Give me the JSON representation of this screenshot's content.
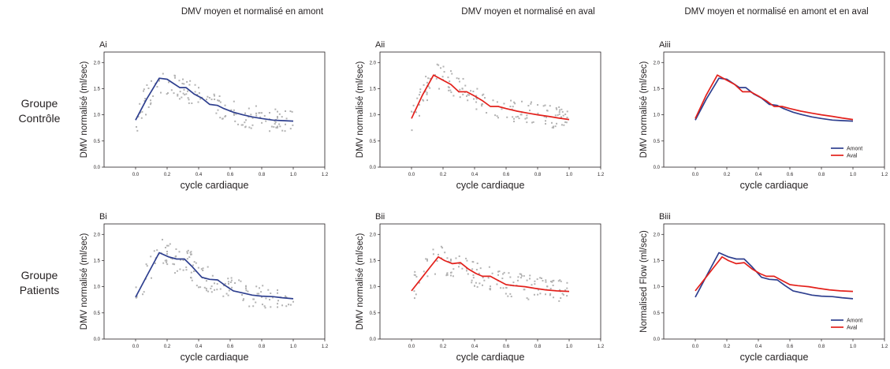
{
  "column_titles": [
    "DMV moyen et normalisé en amont",
    "DMV moyen et normalisé en aval",
    "DMV moyen et normalisé en amont et en aval"
  ],
  "row_labels": [
    [
      "Groupe",
      "Contrôle"
    ],
    [
      "Groupe",
      "Patients"
    ]
  ],
  "colors": {
    "amont": "#2e3f8f",
    "aval": "#e3201b",
    "scatter": "#b3b3b3"
  },
  "chart_data": [
    {
      "id": "Ai",
      "type": "line",
      "panel_label": "Ai",
      "xlabel": "cycle cardiaque",
      "ylabel": "DMV normalisé  (ml/sec)",
      "xlim": [
        -0.2,
        1.2
      ],
      "ylim": [
        0,
        2.2
      ],
      "xticks": [
        "0.0",
        "0.2",
        "0.4",
        "0.6",
        "0.8",
        "1.0",
        "1.2"
      ],
      "yticks": [
        "0.0",
        "0.5",
        "1.0",
        "1.5",
        "2.0"
      ],
      "series": [
        {
          "color_key": "amont",
          "x": [
            0.0,
            0.07,
            0.15,
            0.2,
            0.23,
            0.28,
            0.32,
            0.37,
            0.42,
            0.47,
            0.52,
            0.56,
            0.62,
            0.68,
            0.74,
            0.8,
            0.87,
            0.92,
            1.0
          ],
          "y": [
            0.9,
            1.3,
            1.7,
            1.68,
            1.62,
            1.52,
            1.52,
            1.4,
            1.32,
            1.2,
            1.18,
            1.12,
            1.05,
            1.0,
            0.96,
            0.93,
            0.9,
            0.89,
            0.88
          ]
        }
      ],
      "scatter": true,
      "legend": null
    },
    {
      "id": "Aii",
      "type": "line",
      "panel_label": "Aii",
      "xlabel": "cycle cardiaque",
      "ylabel": "DMV normalisé (ml/sec)",
      "xlim": [
        -0.2,
        1.2
      ],
      "ylim": [
        0,
        2.2
      ],
      "xticks": [
        "0.0",
        "0.2",
        "0.4",
        "0.6",
        "0.8",
        "1.0",
        "1.2"
      ],
      "yticks": [
        "0.0",
        "0.5",
        "1.0",
        "1.5",
        "2.0"
      ],
      "series": [
        {
          "color_key": "aval",
          "x": [
            0.0,
            0.07,
            0.14,
            0.2,
            0.25,
            0.3,
            0.35,
            0.4,
            0.45,
            0.5,
            0.55,
            0.6,
            0.67,
            0.74,
            0.8,
            0.87,
            0.93,
            1.0
          ],
          "y": [
            0.93,
            1.38,
            1.76,
            1.66,
            1.58,
            1.44,
            1.44,
            1.36,
            1.27,
            1.16,
            1.16,
            1.12,
            1.07,
            1.03,
            1.0,
            0.97,
            0.94,
            0.91
          ]
        }
      ],
      "scatter": true,
      "legend": null
    },
    {
      "id": "Aiii",
      "type": "line",
      "panel_label": "Aiii",
      "xlabel": "cycle cardiaque",
      "ylabel": "DMV normalisé (ml/sec)",
      "xlim": [
        -0.2,
        1.2
      ],
      "ylim": [
        0,
        2.2
      ],
      "xticks": [
        "0.0",
        "0.2",
        "0.4",
        "0.6",
        "0.8",
        "1.0",
        "1.2"
      ],
      "yticks": [
        "0.0",
        "0.5",
        "1.0",
        "1.5",
        "2.0"
      ],
      "series": [
        {
          "name": "Amont",
          "color_key": "amont",
          "x": [
            0.0,
            0.07,
            0.15,
            0.2,
            0.23,
            0.28,
            0.32,
            0.37,
            0.42,
            0.47,
            0.52,
            0.56,
            0.62,
            0.68,
            0.74,
            0.8,
            0.87,
            0.92,
            1.0
          ],
          "y": [
            0.9,
            1.3,
            1.7,
            1.68,
            1.62,
            1.52,
            1.52,
            1.4,
            1.32,
            1.2,
            1.18,
            1.12,
            1.05,
            1.0,
            0.96,
            0.93,
            0.9,
            0.89,
            0.88
          ]
        },
        {
          "name": "Aval",
          "color_key": "aval",
          "x": [
            0.0,
            0.07,
            0.14,
            0.2,
            0.25,
            0.3,
            0.35,
            0.4,
            0.45,
            0.5,
            0.55,
            0.6,
            0.67,
            0.74,
            0.8,
            0.87,
            0.93,
            1.0
          ],
          "y": [
            0.93,
            1.38,
            1.76,
            1.66,
            1.58,
            1.44,
            1.44,
            1.36,
            1.27,
            1.16,
            1.16,
            1.12,
            1.07,
            1.03,
            1.0,
            0.97,
            0.94,
            0.91
          ]
        }
      ],
      "scatter": false,
      "legend": "bottom-right"
    },
    {
      "id": "Bi",
      "type": "line",
      "panel_label": "Bi",
      "xlabel": "cycle cardiaque",
      "ylabel": "DMV normalisé (ml/sec)",
      "xlim": [
        -0.2,
        1.2
      ],
      "ylim": [
        0,
        2.2
      ],
      "xticks": [
        "0.0",
        "0.2",
        "0.4",
        "0.6",
        "0.8",
        "1.0",
        "1.2"
      ],
      "yticks": [
        "0.0",
        "0.5",
        "1.0",
        "1.5",
        "2.0"
      ],
      "series": [
        {
          "color_key": "amont",
          "x": [
            0.0,
            0.07,
            0.15,
            0.21,
            0.26,
            0.31,
            0.36,
            0.42,
            0.47,
            0.52,
            0.57,
            0.62,
            0.68,
            0.74,
            0.8,
            0.87,
            0.93,
            1.0
          ],
          "y": [
            0.8,
            1.2,
            1.65,
            1.57,
            1.53,
            1.53,
            1.38,
            1.18,
            1.14,
            1.13,
            1.02,
            0.92,
            0.88,
            0.84,
            0.82,
            0.81,
            0.79,
            0.77
          ]
        }
      ],
      "scatter": true,
      "legend": null
    },
    {
      "id": "Bii",
      "type": "line",
      "panel_label": "Bii",
      "xlabel": "cycle cardiaque",
      "ylabel": "DMV normalisé (ml/sec)",
      "xlim": [
        -0.2,
        1.2
      ],
      "ylim": [
        0,
        2.2
      ],
      "xticks": [
        "0.0",
        "0.2",
        "0.4",
        "0.6",
        "0.8",
        "1.0",
        "1.2"
      ],
      "yticks": [
        "0.0",
        "0.5",
        "1.0",
        "1.5",
        "2.0"
      ],
      "series": [
        {
          "color_key": "aval",
          "x": [
            0.0,
            0.06,
            0.12,
            0.17,
            0.21,
            0.26,
            0.31,
            0.36,
            0.41,
            0.45,
            0.5,
            0.55,
            0.6,
            0.65,
            0.72,
            0.78,
            0.85,
            0.92,
            1.0
          ],
          "y": [
            0.92,
            1.15,
            1.38,
            1.57,
            1.5,
            1.44,
            1.46,
            1.34,
            1.25,
            1.2,
            1.2,
            1.12,
            1.04,
            1.02,
            1.0,
            0.97,
            0.94,
            0.92,
            0.91
          ]
        }
      ],
      "scatter": true,
      "legend": null
    },
    {
      "id": "Biii",
      "type": "line",
      "panel_label": "Biii",
      "xlabel": "cycle cardiaque",
      "ylabel": "Normalised Flow (ml/sec)",
      "xlim": [
        -0.2,
        1.2
      ],
      "ylim": [
        0,
        2.2
      ],
      "xticks": [
        "0.0",
        "0.2",
        "0.4",
        "0.6",
        "0.8",
        "1.0",
        "1.2"
      ],
      "yticks": [
        "0.0",
        "0.5",
        "1.0",
        "1.5",
        "2.0"
      ],
      "series": [
        {
          "name": "Amont",
          "color_key": "amont",
          "x": [
            0.0,
            0.07,
            0.15,
            0.21,
            0.26,
            0.31,
            0.36,
            0.42,
            0.47,
            0.52,
            0.57,
            0.62,
            0.68,
            0.74,
            0.8,
            0.87,
            0.93,
            1.0
          ],
          "y": [
            0.8,
            1.2,
            1.65,
            1.57,
            1.53,
            1.53,
            1.38,
            1.18,
            1.14,
            1.13,
            1.02,
            0.92,
            0.88,
            0.84,
            0.82,
            0.81,
            0.79,
            0.77
          ]
        },
        {
          "name": "Aval",
          "color_key": "aval",
          "x": [
            0.0,
            0.06,
            0.12,
            0.17,
            0.21,
            0.26,
            0.31,
            0.36,
            0.41,
            0.45,
            0.5,
            0.55,
            0.6,
            0.65,
            0.72,
            0.78,
            0.85,
            0.92,
            1.0
          ],
          "y": [
            0.92,
            1.15,
            1.38,
            1.57,
            1.5,
            1.44,
            1.46,
            1.34,
            1.25,
            1.2,
            1.2,
            1.12,
            1.04,
            1.02,
            1.0,
            0.97,
            0.94,
            0.92,
            0.91
          ]
        }
      ],
      "scatter": false,
      "legend": "bottom-right"
    }
  ]
}
